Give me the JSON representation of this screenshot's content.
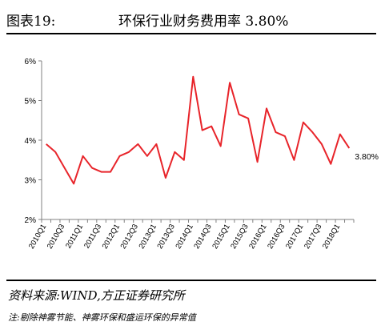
{
  "header": {
    "figure_label": "图表19:",
    "title": "环保行业财务费用率 3.80%"
  },
  "chart_data": {
    "type": "line",
    "title": "",
    "xlabel": "",
    "ylabel": "",
    "ylim": [
      2,
      6
    ],
    "y_ticks": [
      "2%",
      "3%",
      "4%",
      "5%",
      "6%"
    ],
    "grid": false,
    "series_color": "#e8242a",
    "x": [
      "2010Q1",
      "2010Q2",
      "2010Q3",
      "2010Q4",
      "2011Q1",
      "2011Q2",
      "2011Q3",
      "2011Q4",
      "2012Q1",
      "2012Q2",
      "2012Q3",
      "2012Q4",
      "2013Q1",
      "2013Q2",
      "2013Q3",
      "2013Q4",
      "2014Q1",
      "2014Q2",
      "2014Q3",
      "2014Q4",
      "2015Q1",
      "2015Q2",
      "2015Q3",
      "2015Q4",
      "2016Q1",
      "2016Q2",
      "2016Q3",
      "2016Q4",
      "2017Q1",
      "2017Q2",
      "2017Q3",
      "2017Q4",
      "2018Q1",
      "2018Q2"
    ],
    "x_tick_labels": [
      "2010Q1",
      "2010Q3",
      "2011Q1",
      "2011Q3",
      "2012Q1",
      "2012Q3",
      "2013Q1",
      "2013Q3",
      "2014Q1",
      "2014Q3",
      "2015Q1",
      "2015Q3",
      "2016Q1",
      "2016Q3",
      "2017Q1",
      "2017Q3",
      "2018Q1"
    ],
    "series": [
      {
        "values": [
          3.9,
          3.7,
          3.3,
          2.9,
          3.6,
          3.3,
          3.2,
          3.2,
          3.6,
          3.7,
          3.9,
          3.6,
          3.9,
          3.05,
          3.7,
          3.5,
          5.6,
          4.25,
          4.35,
          3.85,
          5.45,
          4.65,
          4.55,
          3.45,
          4.8,
          4.2,
          4.1,
          3.5,
          4.45,
          4.2,
          3.9,
          3.4,
          4.15,
          3.8
        ]
      }
    ],
    "annotation": "3.80%"
  },
  "footer": {
    "source": "资料来源:WIND,方正证券研究所",
    "note": "注:剔除神雾节能、神雾环保和盛运环保的异常值"
  }
}
